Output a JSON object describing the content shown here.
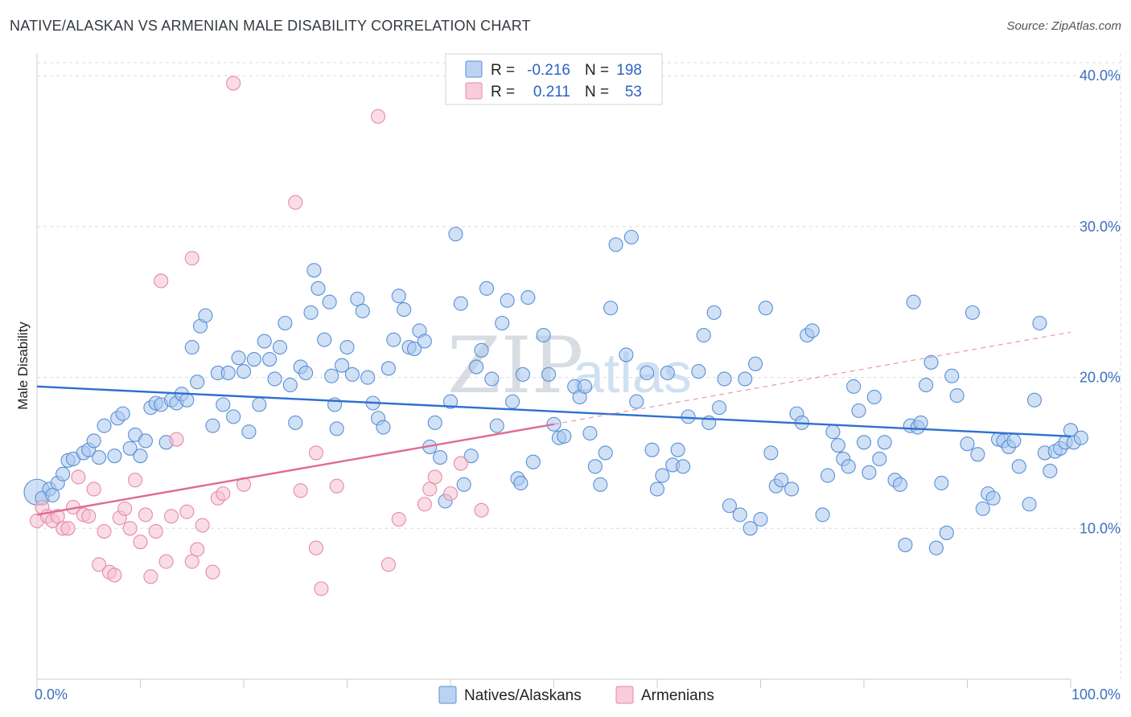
{
  "header": {
    "title": "NATIVE/ALASKAN VS ARMENIAN MALE DISABILITY CORRELATION CHART",
    "source": "Source: ZipAtlas.com"
  },
  "watermark": {
    "part1": "ZIP",
    "part2": "atlas"
  },
  "colors": {
    "native_fill": "#aac8ee",
    "native_stroke": "#5a8fd6",
    "native_line": "#2e6fd0",
    "armenian_fill": "#f6bfd0",
    "armenian_stroke": "#e68aa8",
    "armenian_line": "#e06a96",
    "tick": "#3e70c0",
    "grid": "#d7dbe0"
  },
  "legend": {
    "rows": [
      {
        "r_label": "R =",
        "r_value": "-0.216",
        "n_label": "N =",
        "n_value": "198"
      },
      {
        "r_label": "R =",
        "r_value": "0.211",
        "n_label": "N =",
        "n_value": "53"
      }
    ]
  },
  "bottom_legend": {
    "native": "Natives/Alaskans",
    "armenian": "Armenians"
  },
  "chart_data": {
    "type": "scatter",
    "title": "NATIVE/ALASKAN VS ARMENIAN MALE DISABILITY CORRELATION CHART",
    "xlabel": "",
    "ylabel": "Male Disability",
    "xlim": [
      0,
      100
    ],
    "ylim": [
      0,
      41.5
    ],
    "x_tick_labels": [
      "0.0%",
      "100.0%"
    ],
    "y_ticks": [
      10,
      20,
      30,
      40
    ],
    "y_tick_labels": [
      "10.0%",
      "20.0%",
      "30.0%",
      "40.0%"
    ],
    "grid": true,
    "legend_position": "top-center",
    "series": [
      {
        "name": "Natives/Alaskans",
        "R": -0.216,
        "N": 198,
        "trend": {
          "x": [
            0,
            100
          ],
          "y": [
            19.4,
            16.1
          ]
        },
        "points": [
          [
            0,
            12.4
          ],
          [
            0.5,
            12
          ],
          [
            1.2,
            12.6
          ],
          [
            1.5,
            12.2
          ],
          [
            2,
            13
          ],
          [
            2.5,
            13.6
          ],
          [
            3,
            14.5
          ],
          [
            3.5,
            14.6
          ],
          [
            4.5,
            15
          ],
          [
            5,
            15.2
          ],
          [
            5.5,
            15.8
          ],
          [
            6,
            14.7
          ],
          [
            6.5,
            16.8
          ],
          [
            7.5,
            14.8
          ],
          [
            7.8,
            17.3
          ],
          [
            8.3,
            17.6
          ],
          [
            9,
            15.3
          ],
          [
            9.5,
            16.2
          ],
          [
            10,
            14.8
          ],
          [
            10.5,
            15.8
          ],
          [
            11,
            18
          ],
          [
            11.5,
            18.3
          ],
          [
            12,
            18.2
          ],
          [
            12.5,
            15.7
          ],
          [
            13,
            18.5
          ],
          [
            13.5,
            18.3
          ],
          [
            14,
            18.9
          ],
          [
            14.5,
            18.5
          ],
          [
            15,
            22
          ],
          [
            15.5,
            19.7
          ],
          [
            15.8,
            23.4
          ],
          [
            16.3,
            24.1
          ],
          [
            17,
            16.8
          ],
          [
            17.5,
            20.3
          ],
          [
            18,
            18.2
          ],
          [
            18.5,
            20.3
          ],
          [
            19,
            17.4
          ],
          [
            19.5,
            21.3
          ],
          [
            20,
            20.4
          ],
          [
            20.5,
            16.4
          ],
          [
            21,
            21.2
          ],
          [
            21.5,
            18.2
          ],
          [
            22,
            22.4
          ],
          [
            22.5,
            21.2
          ],
          [
            23,
            19.9
          ],
          [
            23.5,
            22
          ],
          [
            24,
            23.6
          ],
          [
            24.5,
            19.5
          ],
          [
            25,
            17
          ],
          [
            25.5,
            20.7
          ],
          [
            26,
            20.3
          ],
          [
            26.5,
            24.3
          ],
          [
            26.8,
            27.1
          ],
          [
            27.2,
            25.9
          ],
          [
            27.8,
            22.5
          ],
          [
            28.3,
            25
          ],
          [
            28.5,
            20.1
          ],
          [
            28.8,
            18.2
          ],
          [
            29,
            16.6
          ],
          [
            29.5,
            20.8
          ],
          [
            30,
            22
          ],
          [
            30.5,
            20.2
          ],
          [
            31,
            25.2
          ],
          [
            31.5,
            24.4
          ],
          [
            32,
            20
          ],
          [
            32.5,
            18.3
          ],
          [
            33,
            17.3
          ],
          [
            33.5,
            16.7
          ],
          [
            34,
            20.6
          ],
          [
            34.5,
            22.5
          ],
          [
            35,
            25.4
          ],
          [
            35.5,
            24.5
          ],
          [
            36,
            22
          ],
          [
            36.5,
            21.9
          ],
          [
            37,
            23.1
          ],
          [
            37.5,
            22.4
          ],
          [
            38,
            15.4
          ],
          [
            38.5,
            17
          ],
          [
            39,
            14.7
          ],
          [
            39.5,
            11.8
          ],
          [
            40,
            18.4
          ],
          [
            40.5,
            29.5
          ],
          [
            41,
            24.9
          ],
          [
            41.3,
            12.9
          ],
          [
            42,
            14.8
          ],
          [
            42.5,
            20.7
          ],
          [
            43,
            21.8
          ],
          [
            43.5,
            25.9
          ],
          [
            44,
            19.9
          ],
          [
            44.5,
            16.8
          ],
          [
            45,
            23.6
          ],
          [
            45.5,
            25.1
          ],
          [
            46,
            18.4
          ],
          [
            46.5,
            13.3
          ],
          [
            46.8,
            13
          ],
          [
            47,
            20.2
          ],
          [
            47.5,
            25.3
          ],
          [
            48,
            14.4
          ],
          [
            49,
            22.8
          ],
          [
            49.5,
            20.2
          ],
          [
            50,
            16.9
          ],
          [
            50.5,
            16
          ],
          [
            51,
            16.1
          ],
          [
            52,
            19.4
          ],
          [
            52.5,
            18.7
          ],
          [
            53,
            19.4
          ],
          [
            53.5,
            16.3
          ],
          [
            54,
            14.1
          ],
          [
            54.5,
            12.9
          ],
          [
            55,
            15
          ],
          [
            55.5,
            24.6
          ],
          [
            56,
            28.8
          ],
          [
            57,
            21.5
          ],
          [
            57.5,
            29.3
          ],
          [
            58,
            18.4
          ],
          [
            59,
            20.3
          ],
          [
            59.5,
            15.2
          ],
          [
            60,
            12.6
          ],
          [
            60.5,
            13.5
          ],
          [
            61,
            20.3
          ],
          [
            61.5,
            14.2
          ],
          [
            62,
            15.2
          ],
          [
            62.5,
            14.1
          ],
          [
            63,
            17.4
          ],
          [
            64,
            20.4
          ],
          [
            64.5,
            22.8
          ],
          [
            65,
            17
          ],
          [
            65.5,
            24.3
          ],
          [
            66,
            18
          ],
          [
            66.5,
            19.9
          ],
          [
            67,
            11.5
          ],
          [
            68,
            10.9
          ],
          [
            68.5,
            19.9
          ],
          [
            69,
            10
          ],
          [
            69.5,
            20.9
          ],
          [
            70,
            10.6
          ],
          [
            70.5,
            24.6
          ],
          [
            71,
            15
          ],
          [
            71.5,
            12.8
          ],
          [
            72,
            13.2
          ],
          [
            73,
            12.6
          ],
          [
            73.5,
            17.6
          ],
          [
            74,
            17
          ],
          [
            74.5,
            22.8
          ],
          [
            75,
            23.1
          ],
          [
            76,
            10.9
          ],
          [
            76.5,
            13.5
          ],
          [
            77,
            16.4
          ],
          [
            77.5,
            15.5
          ],
          [
            78,
            14.6
          ],
          [
            78.5,
            14.1
          ],
          [
            79,
            19.4
          ],
          [
            79.5,
            17.8
          ],
          [
            80,
            15.7
          ],
          [
            80.5,
            13.7
          ],
          [
            81,
            18.7
          ],
          [
            81.5,
            14.6
          ],
          [
            82,
            15.7
          ],
          [
            83,
            13.2
          ],
          [
            83.5,
            12.9
          ],
          [
            84,
            8.9
          ],
          [
            84.5,
            16.8
          ],
          [
            84.8,
            25
          ],
          [
            85.2,
            16.7
          ],
          [
            85.5,
            17
          ],
          [
            86,
            19.5
          ],
          [
            86.5,
            21
          ],
          [
            87,
            8.7
          ],
          [
            87.5,
            13
          ],
          [
            88,
            9.7
          ],
          [
            88.5,
            20.1
          ],
          [
            89,
            18.8
          ],
          [
            90,
            15.6
          ],
          [
            90.5,
            24.3
          ],
          [
            91,
            14.9
          ],
          [
            91.5,
            11.3
          ],
          [
            92,
            12.3
          ],
          [
            92.5,
            12
          ],
          [
            93,
            15.9
          ],
          [
            93.5,
            15.8
          ],
          [
            94,
            15.4
          ],
          [
            94.5,
            15.8
          ],
          [
            95,
            14.1
          ],
          [
            96,
            11.6
          ],
          [
            96.5,
            18.5
          ],
          [
            97,
            23.6
          ],
          [
            97.5,
            15
          ],
          [
            98,
            13.8
          ],
          [
            98.5,
            15.1
          ],
          [
            99,
            15.3
          ],
          [
            99.5,
            15.7
          ],
          [
            100,
            16.5
          ],
          [
            100.3,
            15.7
          ],
          [
            101,
            16
          ]
        ]
      },
      {
        "name": "Armenians",
        "R": 0.211,
        "N": 53,
        "trend": {
          "x": [
            0,
            50,
            100
          ],
          "y": [
            10.9,
            16.9,
            23
          ],
          "solid_until_x": 50
        },
        "points": [
          [
            0,
            10.5
          ],
          [
            0.5,
            11.4
          ],
          [
            1,
            10.8
          ],
          [
            1.5,
            10.5
          ],
          [
            2,
            10.8
          ],
          [
            2.5,
            10
          ],
          [
            3,
            10
          ],
          [
            3.5,
            11.4
          ],
          [
            4,
            13.4
          ],
          [
            4.5,
            10.9
          ],
          [
            5,
            10.8
          ],
          [
            5.5,
            12.6
          ],
          [
            6,
            7.6
          ],
          [
            6.5,
            9.8
          ],
          [
            7,
            7.1
          ],
          [
            7.5,
            6.9
          ],
          [
            8,
            10.7
          ],
          [
            8.5,
            11.3
          ],
          [
            9,
            10
          ],
          [
            9.5,
            13.2
          ],
          [
            10,
            9.1
          ],
          [
            10.5,
            10.9
          ],
          [
            11,
            6.8
          ],
          [
            11.5,
            9.8
          ],
          [
            12,
            26.4
          ],
          [
            12.5,
            7.8
          ],
          [
            13,
            10.8
          ],
          [
            13.5,
            15.9
          ],
          [
            14.5,
            11.1
          ],
          [
            15,
            7.8
          ],
          [
            15,
            27.9
          ],
          [
            15.5,
            8.6
          ],
          [
            16,
            10.2
          ],
          [
            17,
            7.1
          ],
          [
            17.5,
            12
          ],
          [
            18,
            12.3
          ],
          [
            19,
            39.5
          ],
          [
            20,
            12.9
          ],
          [
            25,
            31.6
          ],
          [
            25.5,
            12.5
          ],
          [
            27,
            8.7
          ],
          [
            27,
            15
          ],
          [
            27.5,
            6
          ],
          [
            29,
            12.8
          ],
          [
            33,
            37.3
          ],
          [
            34,
            7.6
          ],
          [
            35,
            10.6
          ],
          [
            37.5,
            11.6
          ],
          [
            38,
            12.6
          ],
          [
            38.5,
            13.4
          ],
          [
            40,
            12.3
          ],
          [
            41,
            14.3
          ],
          [
            43,
            11.2
          ]
        ]
      }
    ]
  }
}
